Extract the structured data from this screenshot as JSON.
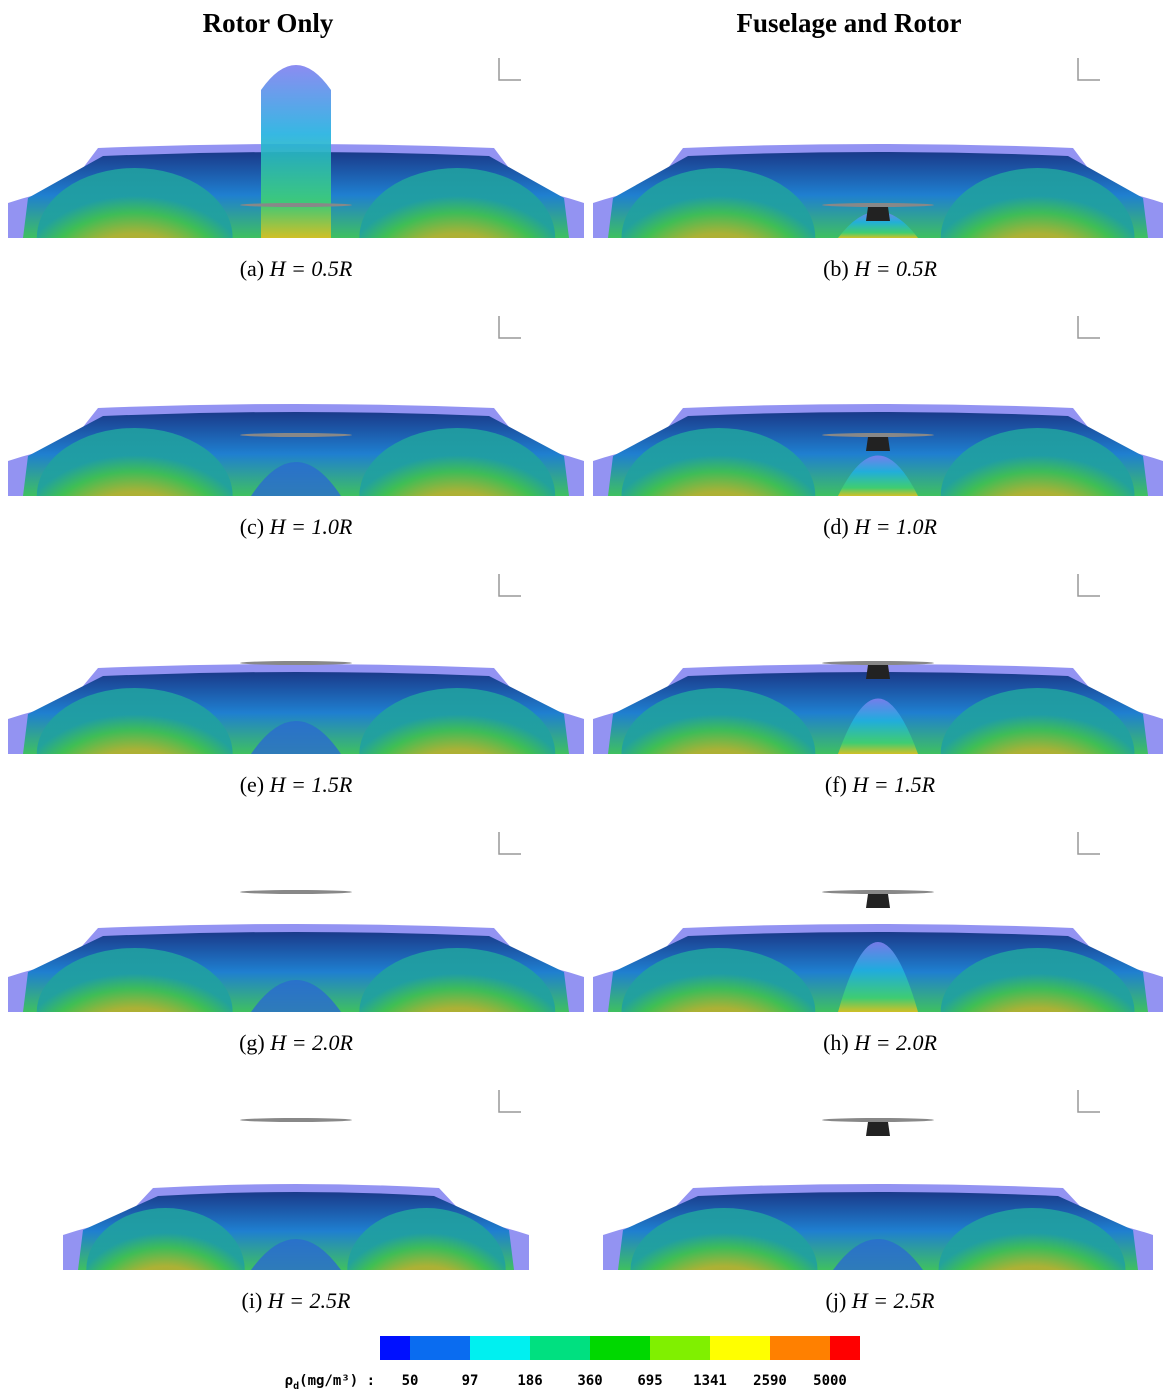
{
  "headers": [
    "Rotor Only",
    "Fuselage and Rotor"
  ],
  "panels": [
    {
      "tag": "(a)",
      "caption": "H = 0.5R"
    },
    {
      "tag": "(b)",
      "caption": "H = 0.5R"
    },
    {
      "tag": "(c)",
      "caption": "H = 1.0R"
    },
    {
      "tag": "(d)",
      "caption": "H = 1.0R"
    },
    {
      "tag": "(e)",
      "caption": "H = 1.5R"
    },
    {
      "tag": "(f)",
      "caption": "H = 1.5R"
    },
    {
      "tag": "(g)",
      "caption": "H = 2.0R"
    },
    {
      "tag": "(h)",
      "caption": "H = 2.0R"
    },
    {
      "tag": "(i)",
      "caption": "H = 2.5R"
    },
    {
      "tag": "(j)",
      "caption": "H = 2.5R"
    }
  ],
  "colorbar": {
    "symbol": "ρ",
    "subscript": "d",
    "unit": "(mg/m³) :",
    "ticks": [
      50,
      97,
      186,
      360,
      695,
      1341,
      2590,
      5000
    ],
    "colors": [
      "#0010ff",
      "#0a6cf0",
      "#00f0f0",
      "#00e080",
      "#00d800",
      "#80f000",
      "#ffff00",
      "#ff8000",
      "#ff0000"
    ]
  }
}
